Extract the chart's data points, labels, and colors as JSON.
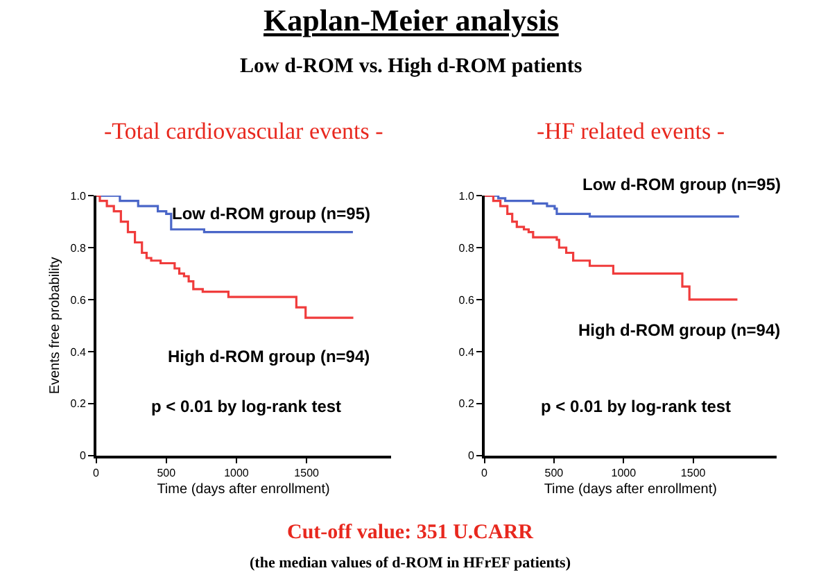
{
  "chart_data": [
    {
      "type": "step",
      "title": "-Total cardiovascular events -",
      "xlabel": "Time (days after enrollment)",
      "ylabel": "Events free probability",
      "xlim": [
        0,
        2100
      ],
      "xticks": [
        0,
        500,
        1000,
        1500
      ],
      "ylim": [
        0,
        1.0
      ],
      "yticks": [
        0,
        0.2,
        0.4,
        0.6,
        0.8,
        {
          "value": 1.0,
          "label": "1.0"
        }
      ],
      "legend": false,
      "grid": false,
      "annotations": [
        "Kaplan-Meier analysis",
        "Low d-ROM vs. High d-ROM patients",
        "p < 0.01 by log-rank test"
      ],
      "series": [
        {
          "name": "Low d-ROM group (n=95)",
          "color": "#4a66c8",
          "x": [
            0,
            170,
            300,
            440,
            500,
            535,
            770,
            1830
          ],
          "values": [
            1.0,
            0.98,
            0.96,
            0.94,
            0.93,
            0.87,
            0.86,
            0.86
          ]
        },
        {
          "name": "High d-ROM group (n=94)",
          "color": "#f03c3c",
          "x": [
            0,
            27,
            77,
            127,
            177,
            227,
            277,
            327,
            360,
            393,
            460,
            560,
            593,
            627,
            660,
            693,
            760,
            943,
            1427,
            1493,
            1833
          ],
          "values": [
            1.0,
            0.98,
            0.96,
            0.94,
            0.9,
            0.86,
            0.82,
            0.78,
            0.76,
            0.75,
            0.74,
            0.72,
            0.7,
            0.69,
            0.67,
            0.64,
            0.63,
            0.61,
            0.57,
            0.53,
            0.53
          ]
        }
      ]
    },
    {
      "type": "step",
      "title": "-HF related events -",
      "xlabel": "Time (days after enrollment)",
      "xlim": [
        0,
        2100
      ],
      "xticks": [
        0,
        500,
        1000,
        1500
      ],
      "ylim": [
        0,
        1.0
      ],
      "yticks": [
        0,
        0.2,
        0.4,
        0.6,
        0.8,
        {
          "value": 1.0,
          "label": "1.0"
        }
      ],
      "legend": false,
      "grid": false,
      "annotations": [
        "p < 0.01 by log-rank test",
        "Cut-off value: 351 U.CARR",
        "(the median values of d-ROM in HFrEF patients)"
      ],
      "series": [
        {
          "name": "Low d-ROM group (n=95)",
          "color": "#4a66c8",
          "x": [
            0,
            100,
            150,
            350,
            450,
            505,
            520,
            757,
            1830
          ],
          "values": [
            1.0,
            0.99,
            0.98,
            0.97,
            0.96,
            0.95,
            0.93,
            0.92,
            0.92
          ]
        },
        {
          "name": "High d-ROM group (n=94)",
          "color": "#f03c3c",
          "x": [
            0,
            64,
            115,
            165,
            200,
            233,
            284,
            318,
            350,
            520,
            537,
            588,
            638,
            757,
            926,
            1422,
            1473,
            1818
          ],
          "values": [
            1.0,
            0.98,
            0.96,
            0.93,
            0.9,
            0.88,
            0.87,
            0.86,
            0.84,
            0.83,
            0.8,
            0.78,
            0.75,
            0.73,
            0.7,
            0.65,
            0.6,
            0.6
          ]
        }
      ]
    }
  ]
}
